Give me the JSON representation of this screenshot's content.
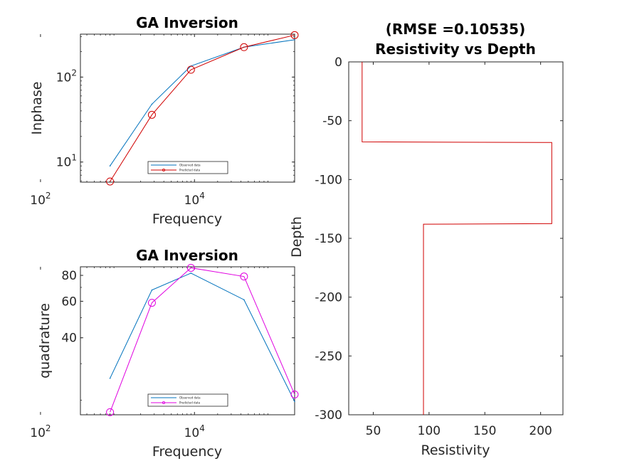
{
  "chart_data": [
    {
      "id": "inphase",
      "type": "line",
      "title": "GA Inversion",
      "xlabel": "Frequency",
      "ylabel": "Inphase",
      "xscale": "log",
      "yscale": "log",
      "xlim": [
        330,
        200000
      ],
      "ylim": [
        5.8,
        320
      ],
      "x_ticks": [
        {
          "base": "10",
          "exp": "2"
        },
        {
          "base": "10",
          "exp": "4"
        }
      ],
      "y_ticks": [
        {
          "base": "10",
          "exp": "1"
        },
        {
          "base": "10",
          "exp": "2"
        }
      ],
      "x": [
        800,
        2800,
        9000,
        44000,
        200000
      ],
      "series": [
        {
          "name": "Observed data",
          "color": "#0072BD",
          "marker": "none",
          "values": [
            9,
            48,
            135,
            225,
            275
          ]
        },
        {
          "name": "Predicted data",
          "color": "#D00000",
          "marker": "circle",
          "values": [
            5.9,
            36,
            122,
            225,
            312
          ]
        }
      ],
      "legend_position": "bottom-center"
    },
    {
      "id": "quadrature",
      "type": "line",
      "title": "GA Inversion",
      "xlabel": "Frequency",
      "ylabel": "quadrature",
      "xscale": "log",
      "yscale": "log",
      "xlim": [
        330,
        200000
      ],
      "ylim": [
        17,
        88
      ],
      "x_ticks": [
        {
          "base": "10",
          "exp": "2"
        },
        {
          "base": "10",
          "exp": "4"
        }
      ],
      "y_ticks": [
        40,
        60,
        80
      ],
      "x": [
        800,
        2800,
        9000,
        44000,
        200000
      ],
      "series": [
        {
          "name": "Observed data",
          "color": "#0072BD",
          "marker": "none",
          "values": [
            25.5,
            68,
            82,
            61,
            19.7
          ]
        },
        {
          "name": "Predicted data",
          "color": "#E000E0",
          "marker": "circle",
          "values": [
            17.5,
            59,
            87,
            79,
            21.3
          ]
        }
      ],
      "legend_position": "bottom-center"
    },
    {
      "id": "resistivity",
      "type": "line",
      "title_line1": "(RMSE =0.10535)",
      "title_line2": "Resistivity vs Depth",
      "xlabel": "Resistivity",
      "ylabel": "Depth",
      "xlim": [
        28,
        220
      ],
      "ylim": [
        -300,
        0
      ],
      "x_ticks": [
        50,
        100,
        150,
        200
      ],
      "y_ticks": [
        0,
        -50,
        -100,
        -150,
        -200,
        -250,
        -300
      ],
      "series": [
        {
          "name": "Model",
          "color": "#D00000",
          "points": [
            [
              40,
              0
            ],
            [
              40,
              -68
            ],
            [
              210,
              -68.5
            ],
            [
              210,
              -137.5
            ],
            [
              95,
              -138
            ],
            [
              95,
              -300
            ]
          ]
        }
      ]
    }
  ]
}
